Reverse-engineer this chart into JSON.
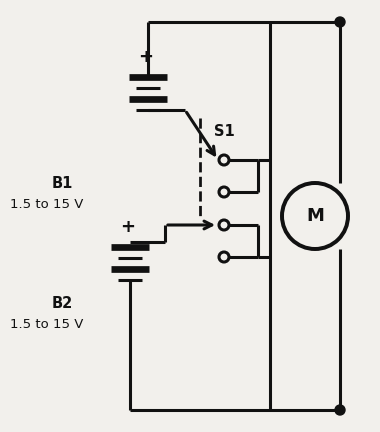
{
  "bg_color": "#f2f0ec",
  "line_color": "#111111",
  "lw": 2.2,
  "fig_w": 3.8,
  "fig_h": 4.32,
  "labels": {
    "B1_name": "B1",
    "B1_volt": "1.5 to 15 V",
    "B2_name": "B2",
    "B2_volt": "1.5 to 15 V",
    "S1": "S1",
    "M": "M"
  },
  "font_size": 10.5
}
